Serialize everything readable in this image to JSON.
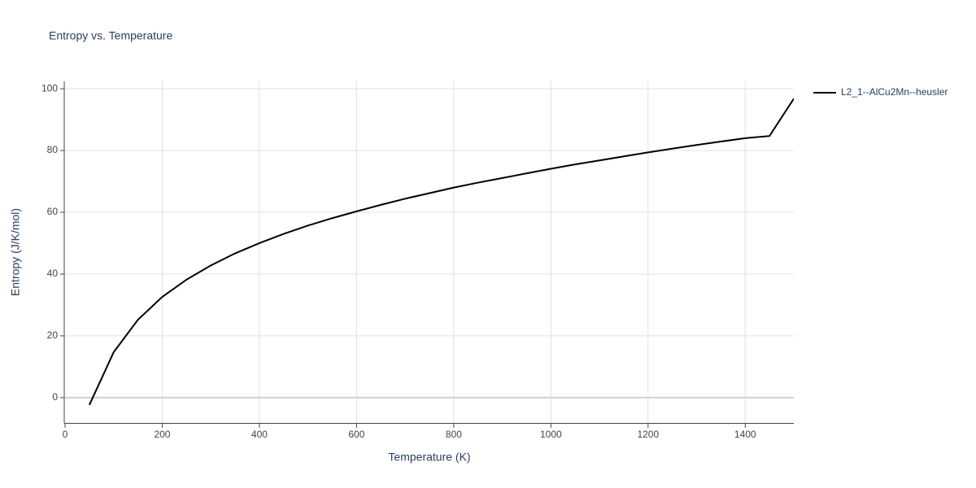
{
  "chart_data": {
    "type": "line",
    "title": "Entropy vs. Temperature",
    "x_label": "Temperature (K)",
    "y_label": "Entropy (J/K/mol)",
    "x": [
      50,
      100,
      150,
      200,
      250,
      300,
      350,
      400,
      450,
      500,
      550,
      600,
      650,
      700,
      750,
      800,
      850,
      900,
      950,
      1000,
      1050,
      1100,
      1150,
      1200,
      1250,
      1300,
      1350,
      1400,
      1450,
      1500
    ],
    "series": [
      {
        "name": "L2_1--AlCu2Mn--heusler",
        "color": "#000000",
        "values": [
          -2.4,
          14.7,
          25.2,
          32.6,
          38.2,
          42.8,
          46.7,
          50.0,
          53.0,
          55.7,
          58.1,
          60.3,
          62.4,
          64.4,
          66.2,
          68.0,
          69.6,
          71.1,
          72.6,
          74.1,
          75.5,
          76.8,
          78.1,
          79.4,
          80.6,
          81.8,
          82.9,
          84.0,
          84.7,
          96.8
        ]
      }
    ],
    "xlim": [
      0,
      1500
    ],
    "xticks": [
      0,
      200,
      400,
      600,
      800,
      1000,
      1200,
      1400
    ],
    "ylim": [
      -8.2,
      102.4
    ],
    "yticks": [
      0,
      20,
      40,
      60,
      80,
      100
    ],
    "grid": true,
    "legend": "right"
  }
}
